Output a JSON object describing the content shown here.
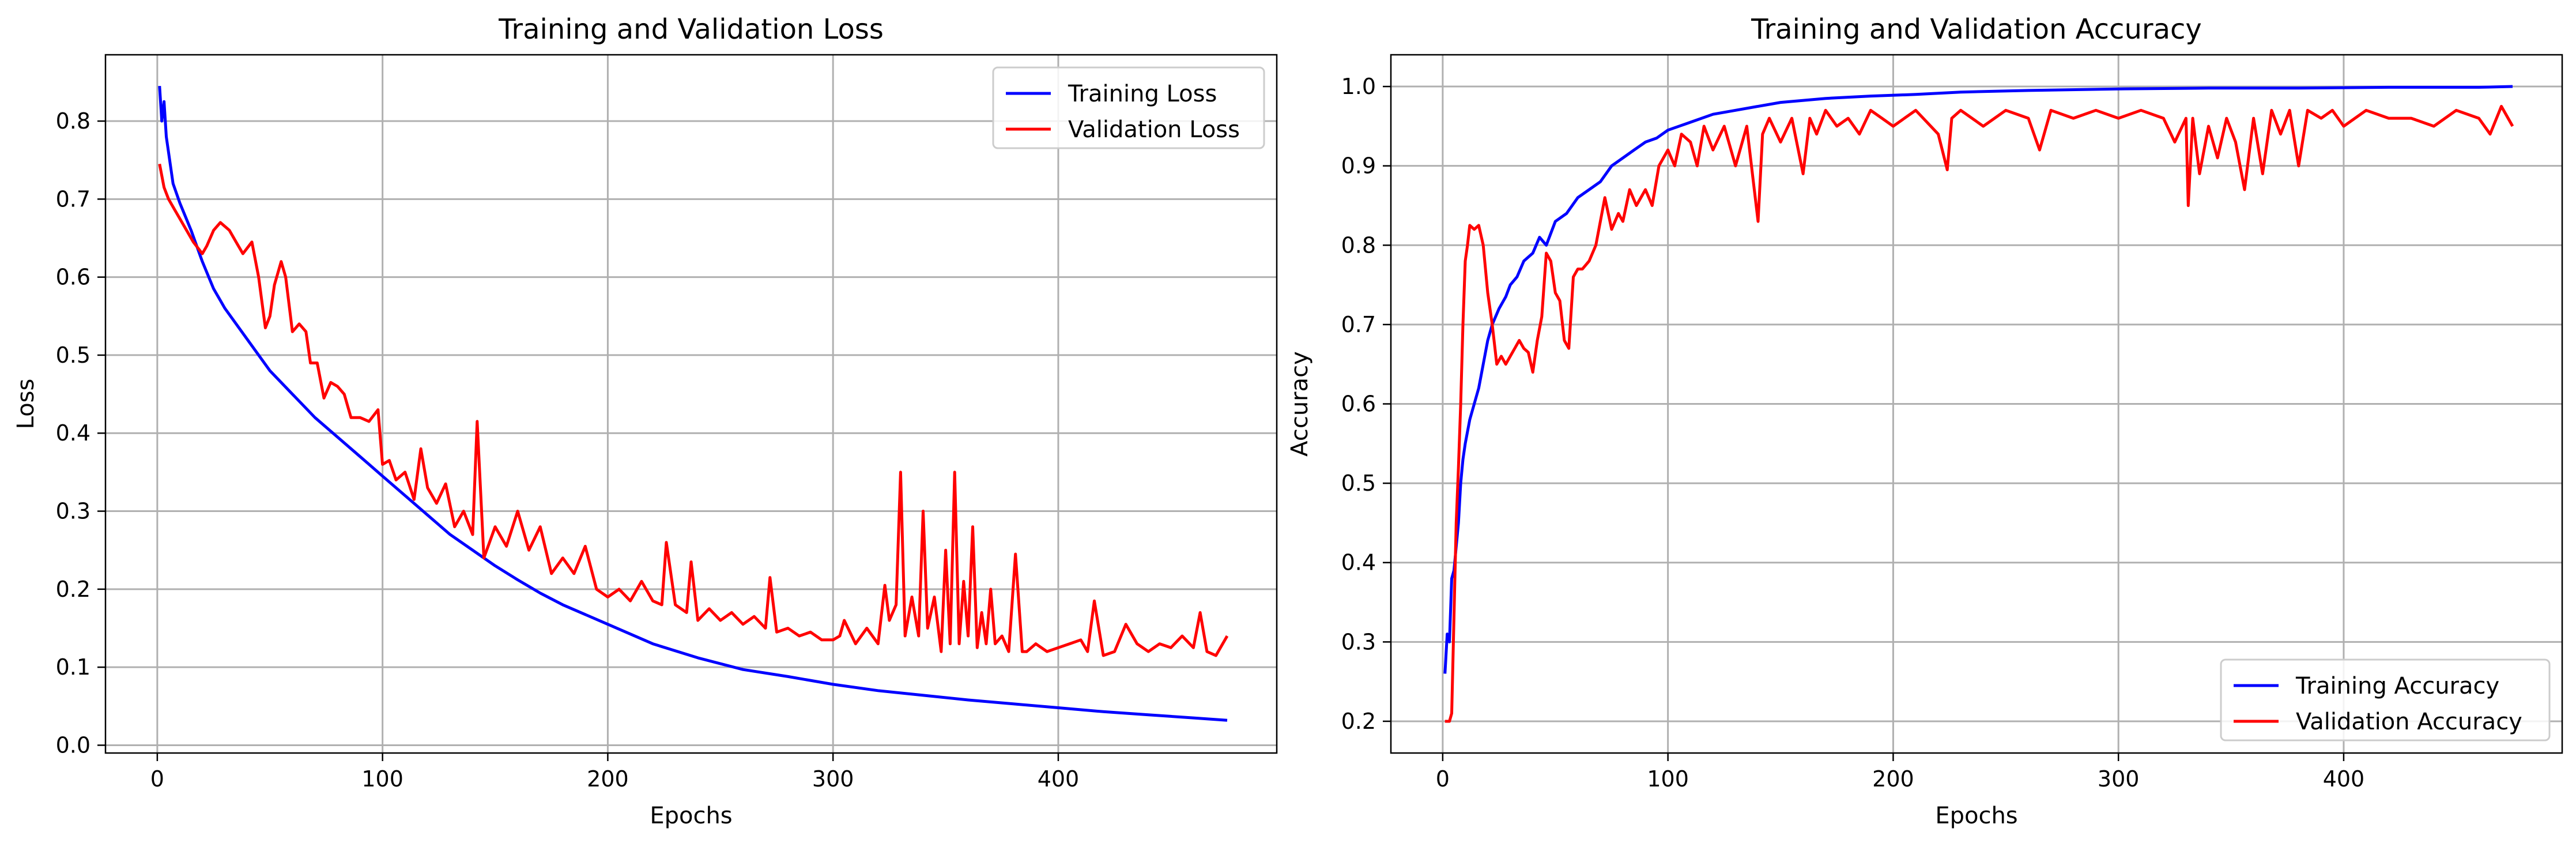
{
  "chart_data": [
    {
      "type": "line",
      "title": "Training and Validation Loss",
      "xlabel": "Epochs",
      "ylabel": "Loss",
      "xlim": [
        -23,
        497
      ],
      "ylim": [
        -0.01,
        0.885
      ],
      "xticks": [
        0,
        100,
        200,
        300,
        400
      ],
      "yticks": [
        0.0,
        0.1,
        0.2,
        0.3,
        0.4,
        0.5,
        0.6,
        0.7,
        0.8
      ],
      "grid": true,
      "legend_position": "top-right",
      "series": [
        {
          "name": "Training Loss",
          "color": "#0000ff",
          "x": [
            1,
            2,
            3,
            4,
            5,
            7,
            10,
            15,
            20,
            25,
            30,
            40,
            50,
            60,
            70,
            80,
            90,
            100,
            110,
            120,
            130,
            140,
            150,
            160,
            170,
            180,
            200,
            220,
            240,
            260,
            280,
            300,
            320,
            340,
            360,
            380,
            400,
            420,
            440,
            460,
            475
          ],
          "y": [
            0.845,
            0.8,
            0.825,
            0.78,
            0.76,
            0.72,
            0.695,
            0.66,
            0.62,
            0.585,
            0.56,
            0.52,
            0.48,
            0.45,
            0.42,
            0.395,
            0.37,
            0.345,
            0.32,
            0.295,
            0.27,
            0.25,
            0.23,
            0.212,
            0.195,
            0.18,
            0.155,
            0.13,
            0.112,
            0.097,
            0.088,
            0.078,
            0.07,
            0.064,
            0.058,
            0.053,
            0.048,
            0.043,
            0.039,
            0.035,
            0.032
          ]
        },
        {
          "name": "Validation Loss",
          "color": "#ff0000",
          "x": [
            1,
            3,
            5,
            8,
            12,
            16,
            20,
            22,
            25,
            28,
            32,
            35,
            38,
            42,
            45,
            48,
            50,
            52,
            55,
            57,
            60,
            63,
            66,
            68,
            71,
            74,
            77,
            80,
            83,
            86,
            90,
            94,
            98,
            100,
            103,
            106,
            110,
            114,
            117,
            120,
            124,
            128,
            132,
            136,
            140,
            142,
            145,
            150,
            155,
            160,
            165,
            170,
            175,
            180,
            185,
            190,
            195,
            200,
            205,
            210,
            215,
            220,
            224,
            226,
            230,
            235,
            237,
            240,
            245,
            250,
            255,
            260,
            265,
            270,
            272,
            275,
            280,
            285,
            290,
            295,
            300,
            303,
            305,
            310,
            315,
            320,
            323,
            325,
            328,
            330,
            332,
            335,
            338,
            340,
            342,
            345,
            348,
            350,
            352,
            354,
            356,
            358,
            360,
            362,
            364,
            366,
            368,
            370,
            372,
            375,
            378,
            381,
            384,
            386,
            390,
            395,
            400,
            405,
            410,
            413,
            416,
            420,
            425,
            430,
            435,
            440,
            445,
            450,
            455,
            460,
            463,
            466,
            470,
            475
          ],
          "y": [
            0.745,
            0.715,
            0.7,
            0.685,
            0.665,
            0.645,
            0.63,
            0.64,
            0.66,
            0.67,
            0.66,
            0.645,
            0.63,
            0.645,
            0.6,
            0.535,
            0.55,
            0.59,
            0.62,
            0.6,
            0.53,
            0.54,
            0.53,
            0.49,
            0.49,
            0.445,
            0.465,
            0.46,
            0.45,
            0.42,
            0.42,
            0.415,
            0.43,
            0.36,
            0.365,
            0.34,
            0.35,
            0.315,
            0.38,
            0.33,
            0.31,
            0.335,
            0.28,
            0.3,
            0.27,
            0.415,
            0.24,
            0.28,
            0.255,
            0.3,
            0.25,
            0.28,
            0.22,
            0.24,
            0.22,
            0.255,
            0.2,
            0.19,
            0.2,
            0.185,
            0.21,
            0.185,
            0.18,
            0.26,
            0.18,
            0.17,
            0.235,
            0.16,
            0.175,
            0.16,
            0.17,
            0.155,
            0.165,
            0.15,
            0.215,
            0.145,
            0.15,
            0.14,
            0.145,
            0.135,
            0.135,
            0.14,
            0.16,
            0.13,
            0.15,
            0.13,
            0.205,
            0.16,
            0.18,
            0.35,
            0.14,
            0.19,
            0.14,
            0.3,
            0.15,
            0.19,
            0.12,
            0.25,
            0.13,
            0.35,
            0.13,
            0.21,
            0.14,
            0.28,
            0.125,
            0.17,
            0.13,
            0.2,
            0.13,
            0.14,
            0.12,
            0.245,
            0.12,
            0.12,
            0.13,
            0.12,
            0.125,
            0.13,
            0.135,
            0.12,
            0.185,
            0.115,
            0.12,
            0.155,
            0.13,
            0.12,
            0.13,
            0.125,
            0.14,
            0.125,
            0.17,
            0.12,
            0.115,
            0.14
          ]
        }
      ]
    },
    {
      "type": "line",
      "title": "Training and Validation Accuracy",
      "xlabel": "Epochs",
      "ylabel": "Accuracy",
      "xlim": [
        -23,
        497
      ],
      "ylim": [
        0.16,
        1.04
      ],
      "xticks": [
        0,
        100,
        200,
        300,
        400
      ],
      "yticks": [
        0.2,
        0.3,
        0.4,
        0.5,
        0.6,
        0.7,
        0.8,
        0.9,
        1.0
      ],
      "grid": true,
      "legend_position": "bottom-right",
      "series": [
        {
          "name": "Training Accuracy",
          "color": "#0000ff",
          "x": [
            1,
            2,
            3,
            4,
            5,
            6,
            7,
            8,
            9,
            10,
            12,
            14,
            16,
            18,
            20,
            22,
            25,
            28,
            30,
            33,
            36,
            40,
            43,
            46,
            50,
            55,
            60,
            65,
            70,
            75,
            80,
            85,
            90,
            95,
            100,
            110,
            120,
            130,
            140,
            150,
            170,
            190,
            210,
            230,
            260,
            300,
            340,
            380,
            420,
            460,
            475
          ],
          "y": [
            0.26,
            0.31,
            0.3,
            0.38,
            0.39,
            0.42,
            0.45,
            0.5,
            0.53,
            0.55,
            0.58,
            0.6,
            0.62,
            0.65,
            0.68,
            0.7,
            0.72,
            0.735,
            0.75,
            0.76,
            0.78,
            0.79,
            0.81,
            0.8,
            0.83,
            0.84,
            0.86,
            0.87,
            0.88,
            0.9,
            0.91,
            0.92,
            0.93,
            0.935,
            0.945,
            0.955,
            0.965,
            0.97,
            0.975,
            0.98,
            0.985,
            0.988,
            0.99,
            0.993,
            0.995,
            0.997,
            0.998,
            0.998,
            0.999,
            0.999,
            1.0
          ]
        },
        {
          "name": "Validation Accuracy",
          "color": "#ff0000",
          "x": [
            1,
            3,
            4,
            5,
            6,
            7,
            8,
            9,
            10,
            11,
            12,
            14,
            16,
            18,
            20,
            22,
            24,
            26,
            28,
            30,
            32,
            34,
            36,
            38,
            40,
            42,
            44,
            46,
            48,
            50,
            52,
            54,
            56,
            58,
            60,
            62,
            65,
            68,
            70,
            72,
            75,
            78,
            80,
            83,
            86,
            90,
            93,
            96,
            100,
            103,
            106,
            110,
            113,
            116,
            120,
            125,
            130,
            135,
            140,
            142,
            145,
            150,
            155,
            160,
            163,
            166,
            170,
            175,
            180,
            185,
            190,
            195,
            200,
            210,
            220,
            224,
            226,
            230,
            240,
            250,
            260,
            265,
            270,
            280,
            290,
            300,
            310,
            320,
            325,
            330,
            331,
            333,
            336,
            340,
            344,
            348,
            352,
            356,
            360,
            364,
            368,
            372,
            376,
            380,
            384,
            390,
            395,
            400,
            410,
            420,
            430,
            440,
            450,
            460,
            465,
            470,
            475
          ],
          "y": [
            0.2,
            0.2,
            0.21,
            0.33,
            0.45,
            0.52,
            0.6,
            0.7,
            0.78,
            0.8,
            0.825,
            0.82,
            0.825,
            0.8,
            0.74,
            0.7,
            0.65,
            0.66,
            0.65,
            0.66,
            0.67,
            0.68,
            0.67,
            0.665,
            0.64,
            0.68,
            0.71,
            0.79,
            0.78,
            0.74,
            0.73,
            0.68,
            0.67,
            0.76,
            0.77,
            0.77,
            0.78,
            0.8,
            0.83,
            0.86,
            0.82,
            0.84,
            0.83,
            0.87,
            0.85,
            0.87,
            0.85,
            0.9,
            0.92,
            0.9,
            0.94,
            0.93,
            0.9,
            0.95,
            0.92,
            0.95,
            0.9,
            0.95,
            0.83,
            0.94,
            0.96,
            0.93,
            0.96,
            0.89,
            0.96,
            0.94,
            0.97,
            0.95,
            0.96,
            0.94,
            0.97,
            0.96,
            0.95,
            0.97,
            0.94,
            0.895,
            0.96,
            0.97,
            0.95,
            0.97,
            0.96,
            0.92,
            0.97,
            0.96,
            0.97,
            0.96,
            0.97,
            0.96,
            0.93,
            0.96,
            0.85,
            0.96,
            0.89,
            0.95,
            0.91,
            0.96,
            0.93,
            0.87,
            0.96,
            0.89,
            0.97,
            0.94,
            0.97,
            0.9,
            0.97,
            0.96,
            0.97,
            0.95,
            0.97,
            0.96,
            0.96,
            0.95,
            0.97,
            0.96,
            0.94,
            0.975,
            0.95
          ]
        }
      ]
    }
  ]
}
